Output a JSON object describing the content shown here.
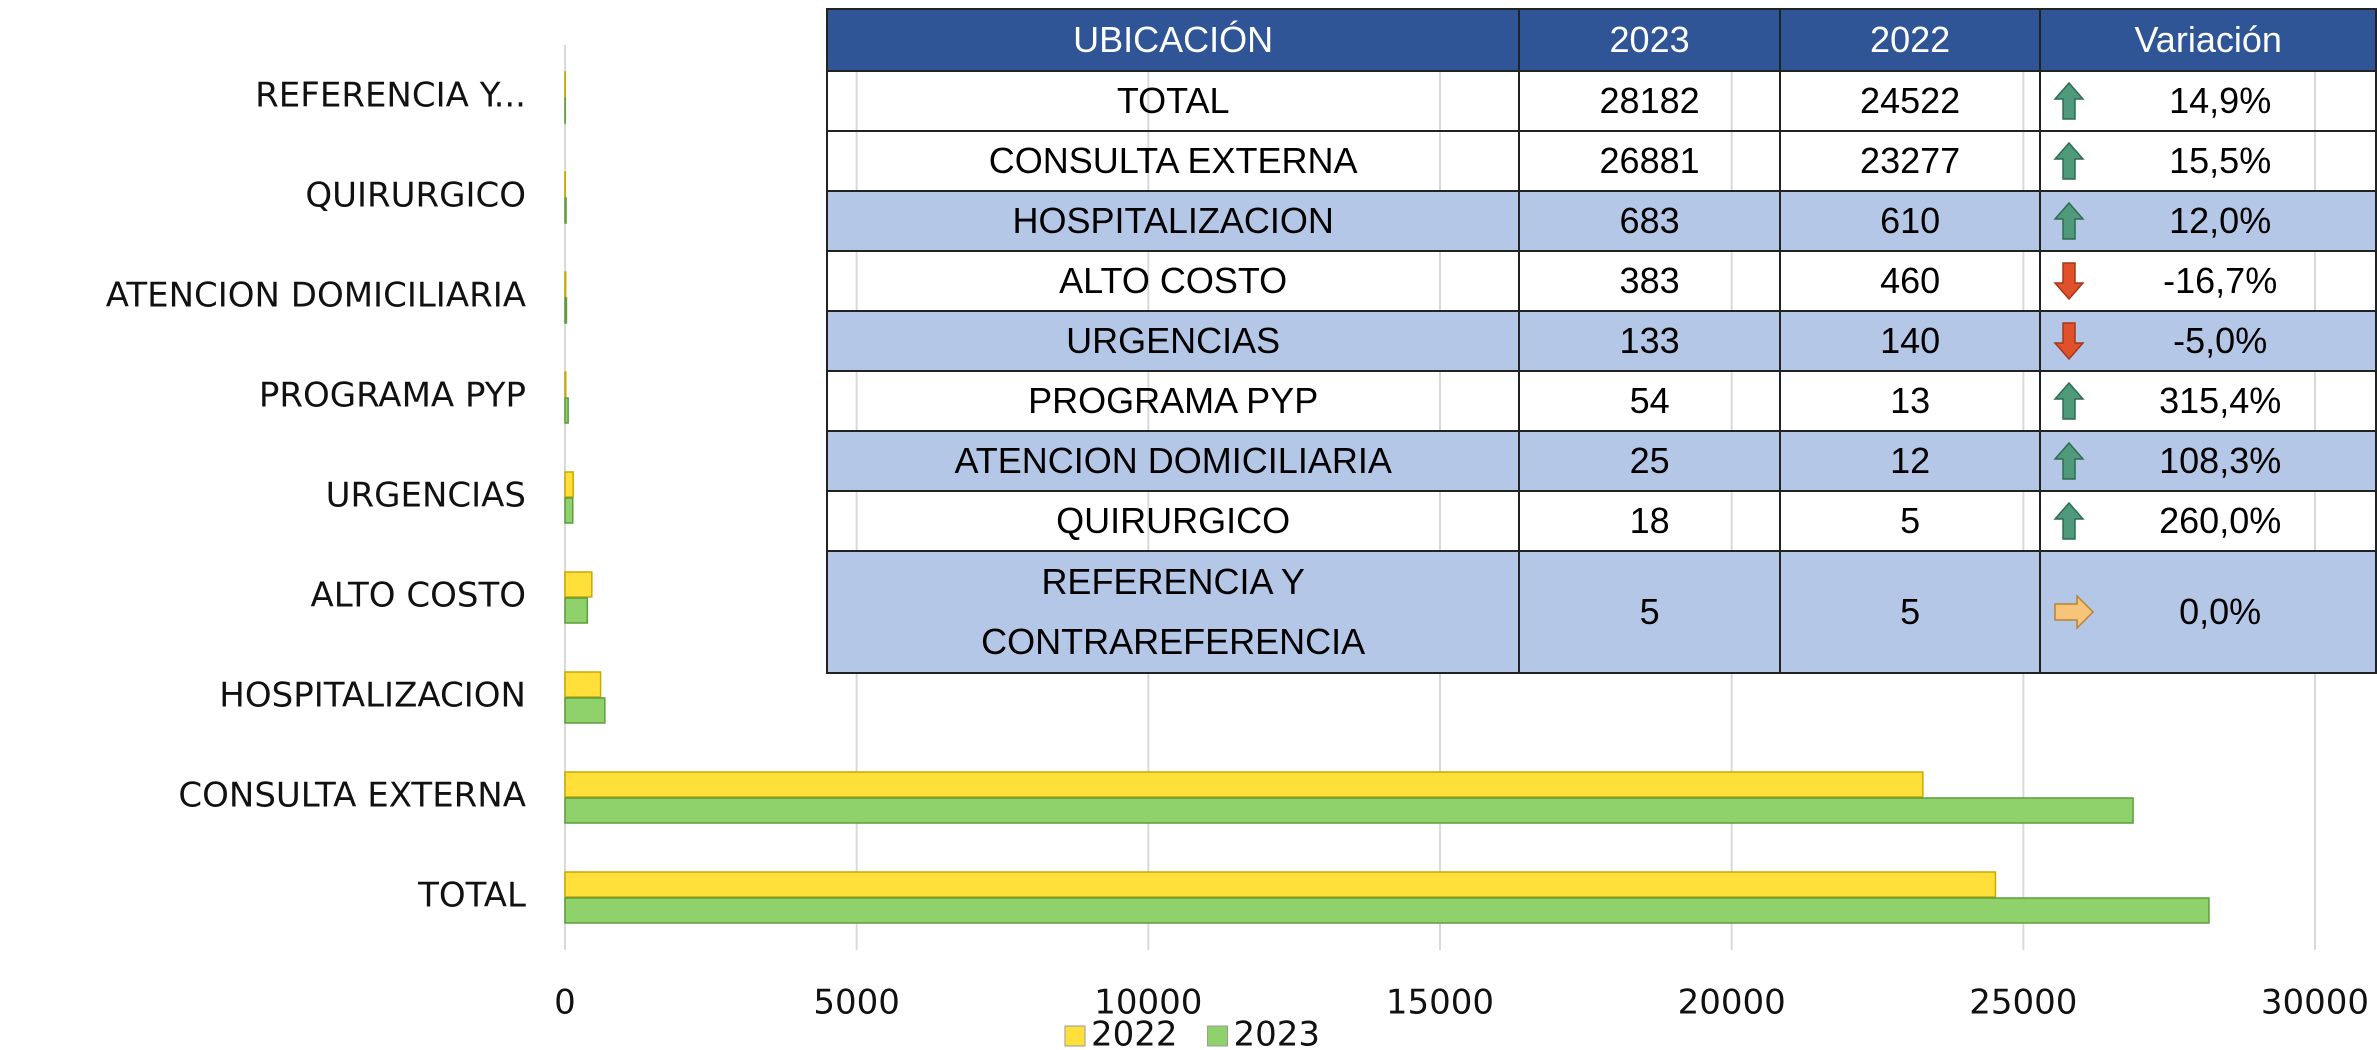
{
  "chart_data": {
    "type": "hbar",
    "categories": [
      "TOTAL",
      "CONSULTA EXTERNA",
      "HOSPITALIZACION",
      "ALTO COSTO",
      "URGENCIAS",
      "PROGRAMA PYP",
      "ATENCION DOMICILIARIA",
      "QUIRURGICO",
      "REFERENCIA Y..."
    ],
    "series": [
      {
        "name": "2022",
        "color": "#ffe03a",
        "values": [
          24522,
          23277,
          610,
          460,
          140,
          13,
          12,
          5,
          5
        ]
      },
      {
        "name": "2023",
        "color": "#8fd16a",
        "values": [
          28182,
          26881,
          683,
          383,
          133,
          54,
          25,
          18,
          5
        ]
      }
    ],
    "xlim": [
      0,
      30000
    ],
    "xticks": [
      0,
      5000,
      10000,
      15000,
      20000,
      25000,
      30000
    ],
    "grid": true,
    "legend": "bottom"
  },
  "table": {
    "header": [
      "UBICACIÓN",
      "2023",
      "2022",
      "Variación"
    ],
    "rows": [
      [
        "TOTAL",
        28182,
        24522,
        "14,9%"
      ],
      [
        "CONSULTA EXTERNA",
        26881,
        23277,
        "15,5%"
      ],
      [
        "HOSPITALIZACION",
        683,
        610,
        "12,0%"
      ],
      [
        "ALTO COSTO",
        383,
        460,
        "-16,7%"
      ],
      [
        "URGENCIAS",
        133,
        140,
        "-5,0%"
      ],
      [
        "PROGRAMA PYP",
        54,
        13,
        "315,4%"
      ],
      [
        "ATENCION DOMICILIARIA",
        25,
        12,
        "108,3%"
      ],
      [
        "QUIRURGICO",
        18,
        5,
        "260,0%"
      ],
      [
        "REFERENCIA Y CONTRAREFERENCIA",
        5,
        5,
        "0,0%"
      ]
    ]
  }
}
